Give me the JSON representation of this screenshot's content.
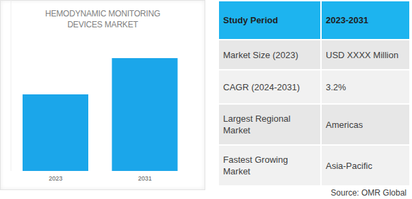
{
  "chart_data": {
    "type": "bar",
    "title": "HEMODYNAMIC MONITORING DEVICES MARKET",
    "categories": [
      "2023",
      "2031"
    ],
    "values": [
      112,
      165
    ],
    "color": "#1ba6ea",
    "ylim": [
      0,
      250
    ],
    "yticks": [],
    "grid": false,
    "tick_labels": "x"
  },
  "table": {
    "header": [
      "Study Period",
      "2023-2031"
    ],
    "rows": [
      [
        "Market Size (2023)",
        "USD XXXX Million"
      ],
      [
        "CAGR (2024-2031)",
        "3.2%"
      ],
      [
        "Largest Regional Market",
        "Americas"
      ],
      [
        "Fastest Growing Market",
        "Asia-Pacific"
      ]
    ]
  },
  "source": "Source: OMR Global"
}
